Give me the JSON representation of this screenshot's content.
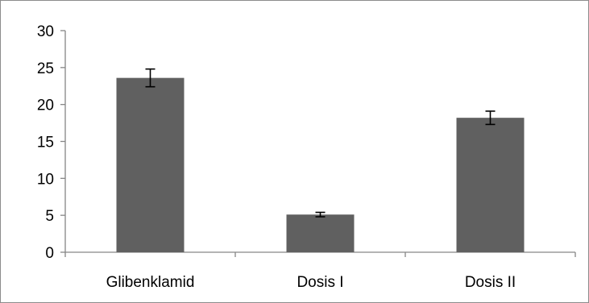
{
  "chart_data": {
    "type": "bar",
    "title": "",
    "xlabel": "",
    "ylabel": "",
    "categories": [
      "Glibenklamid",
      "Dosis I",
      "Dosis II"
    ],
    "values": [
      23.6,
      5.1,
      18.2
    ],
    "error": [
      1.2,
      0.3,
      0.9
    ],
    "ylim": [
      0,
      30
    ],
    "yticks": [
      "0",
      "5",
      "10",
      "15",
      "20",
      "25",
      "30"
    ],
    "grid": false,
    "legend": "none",
    "bar_color": "#606060",
    "axis_color": "#868686",
    "errorbar_color": "#000000"
  }
}
